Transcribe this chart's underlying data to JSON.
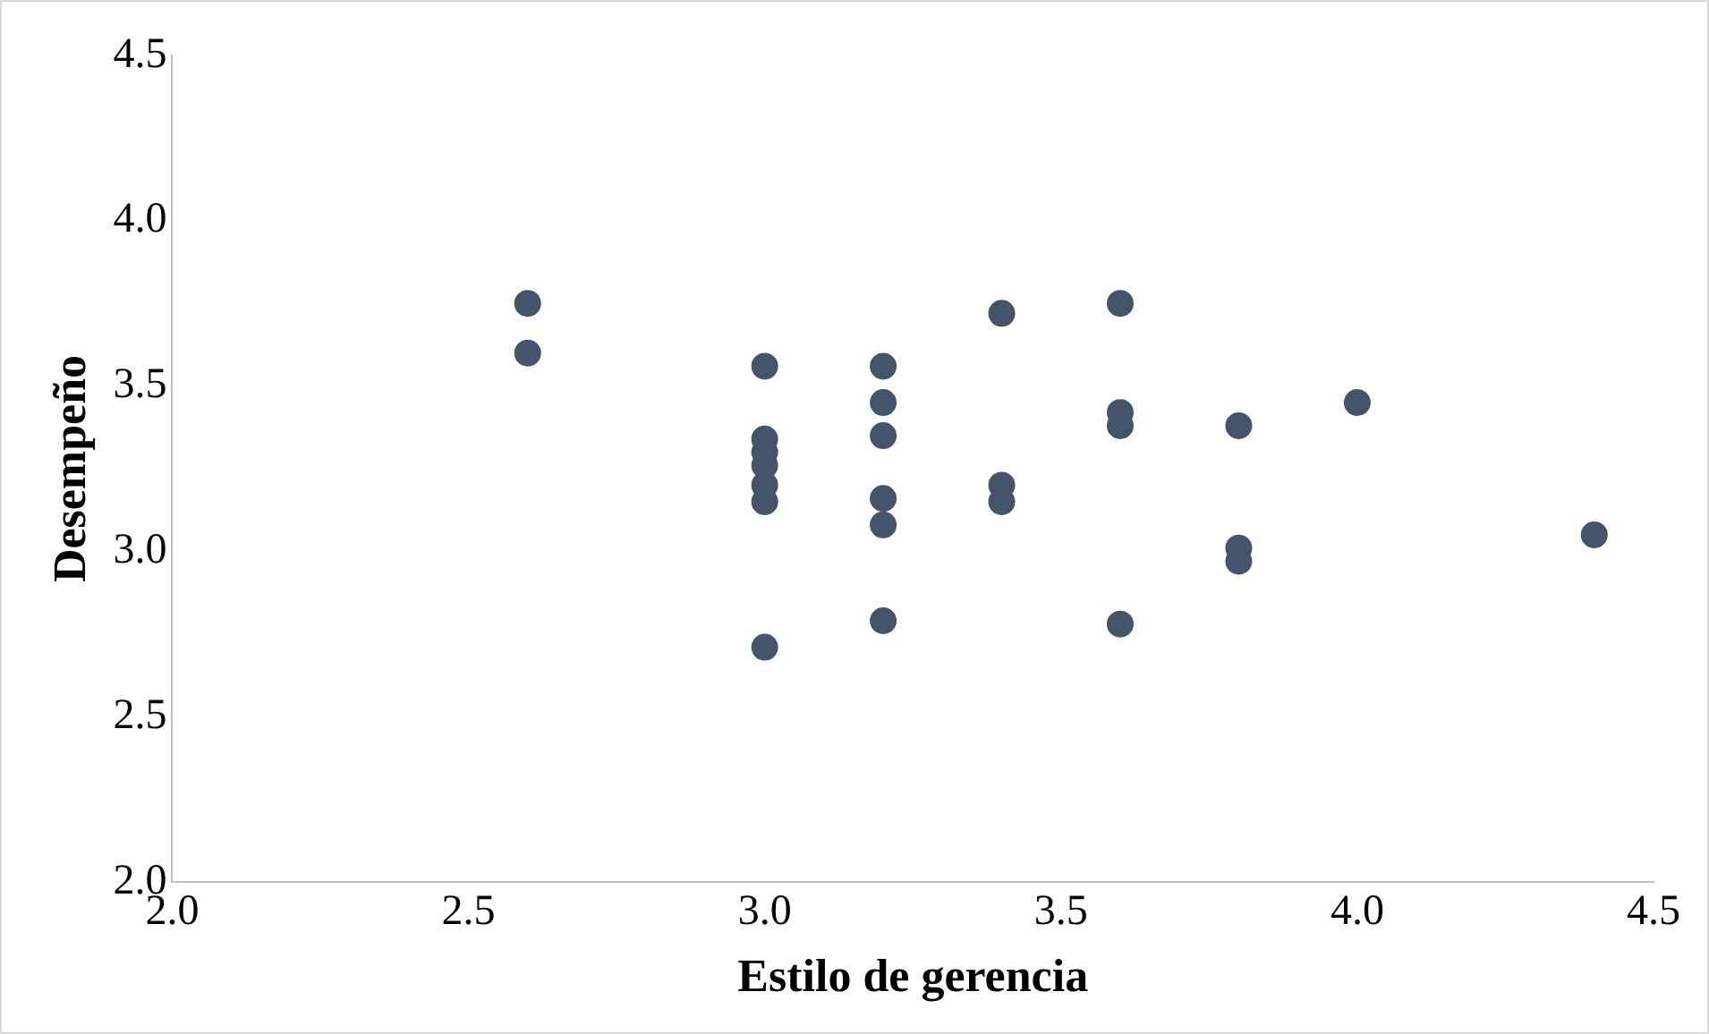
{
  "chart_data": {
    "type": "scatter",
    "xlabel": "Estilo de gerencia",
    "ylabel": "Desempeño",
    "x": [
      2.6,
      2.6,
      3.0,
      3.0,
      3.0,
      3.0,
      3.0,
      3.0,
      3.0,
      3.2,
      3.2,
      3.2,
      3.2,
      3.2,
      3.2,
      3.4,
      3.4,
      3.4,
      3.6,
      3.6,
      3.6,
      3.6,
      3.8,
      3.8,
      3.8,
      4.0,
      4.4
    ],
    "series": [
      {
        "color": "#44546a",
        "values": [
          3.75,
          3.6,
          3.56,
          3.34,
          3.3,
          3.26,
          3.2,
          3.15,
          2.71,
          3.56,
          3.45,
          3.35,
          3.16,
          3.08,
          2.79,
          3.72,
          3.2,
          3.15,
          3.75,
          3.42,
          3.38,
          2.78,
          3.38,
          3.01,
          2.97,
          3.45,
          3.05
        ]
      }
    ],
    "xlim": [
      2.0,
      4.5
    ],
    "xticks": [
      {
        "value": 2,
        "label": "2.0"
      },
      2.5,
      {
        "value": 3,
        "label": "3.0"
      },
      3.5,
      {
        "value": 4,
        "label": "4.0"
      },
      4.5
    ],
    "ylim": [
      2.0,
      4.5
    ],
    "yticks": [
      {
        "value": 2,
        "label": "2.0"
      },
      2.5,
      {
        "value": 3,
        "label": "3.0"
      },
      3.5,
      {
        "value": 4,
        "label": "4.0"
      },
      4.5
    ],
    "grid": false,
    "legend": false,
    "marker": "circle"
  }
}
